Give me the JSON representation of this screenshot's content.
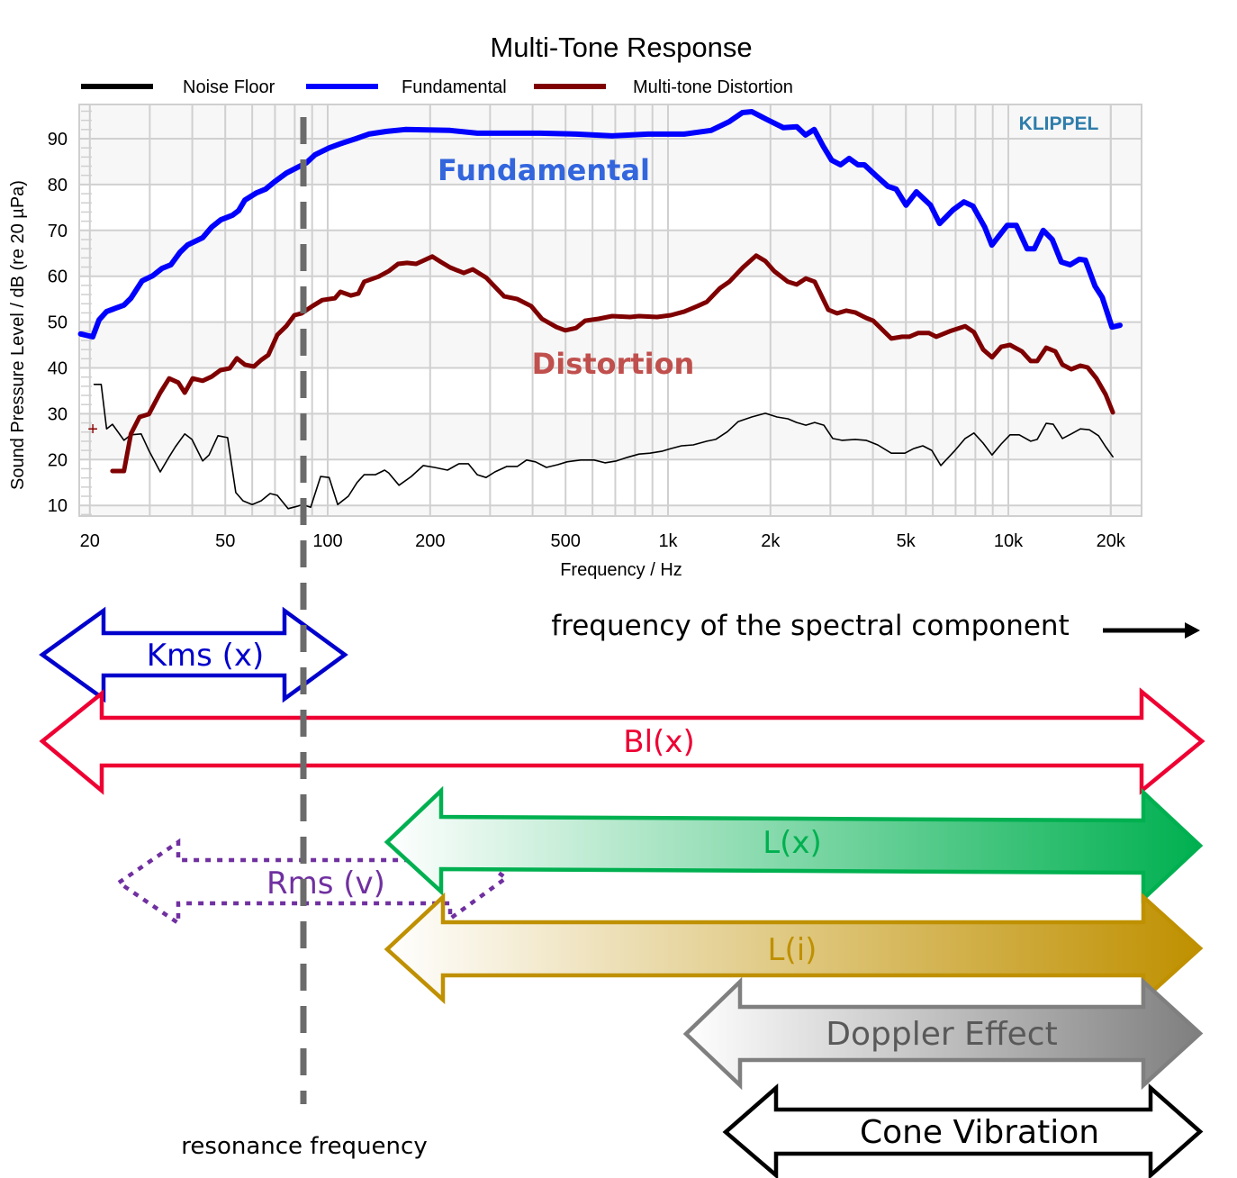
{
  "chart_data": {
    "type": "line",
    "title": "Multi-Tone Response",
    "xlabel": "Frequency / Hz",
    "ylabel": "Sound Pressure Level / dB (re 20 µPa)",
    "xscale": "log",
    "xlim": [
      18.6,
      24600
    ],
    "ylim": [
      7.6,
      97.5
    ],
    "grid": true,
    "legend_placement": "top",
    "x_ticks": [
      20,
      50,
      100,
      200,
      500,
      1000,
      2000,
      5000,
      10000,
      20000
    ],
    "x_tick_labels": [
      "20",
      "50",
      "100",
      "200",
      "500",
      "1k",
      "2k",
      "5k",
      "10k",
      "20k"
    ],
    "y_ticks": [
      10,
      20,
      30,
      40,
      50,
      60,
      70,
      80,
      90
    ],
    "y_tick_labels": [
      "10",
      "20",
      "30",
      "40",
      "50",
      "60",
      "70",
      "80",
      "90"
    ],
    "watermark": "KLIPPEL",
    "annotations": [
      {
        "text": "Fundamental",
        "color": "#3366dd"
      },
      {
        "text": "Distortion",
        "color": "#c0504d"
      }
    ],
    "marker": {
      "label": "+",
      "x": 20.4,
      "y": 26.7,
      "color": "#8b0000"
    },
    "resonance_frequency_hz": 85,
    "series": [
      {
        "name": "Noise Floor",
        "color": "#000000",
        "points": [
          [
            20.6,
            36.4
          ],
          [
            21.6,
            36.4
          ],
          [
            22.4,
            26.7
          ],
          [
            23.3,
            27.7
          ],
          [
            25.2,
            24.2
          ],
          [
            26.4,
            25.4
          ],
          [
            28.3,
            25.6
          ],
          [
            29.8,
            22.0
          ],
          [
            32.2,
            17.3
          ],
          [
            34.2,
            20.6
          ],
          [
            35.7,
            22.8
          ],
          [
            38.0,
            25.6
          ],
          [
            39.9,
            24.4
          ],
          [
            42.9,
            19.7
          ],
          [
            44.8,
            21.0
          ],
          [
            47.6,
            25.2
          ],
          [
            50.8,
            24.8
          ],
          [
            53.7,
            12.8
          ],
          [
            56.4,
            11.0
          ],
          [
            60.0,
            10.2
          ],
          [
            63.7,
            11.0
          ],
          [
            67.7,
            12.6
          ],
          [
            71.1,
            12.2
          ],
          [
            76.5,
            9.3
          ],
          [
            81.3,
            9.8
          ],
          [
            84.3,
            10.2
          ],
          [
            89.1,
            9.6
          ],
          [
            95.3,
            16.3
          ],
          [
            101,
            16.1
          ],
          [
            107,
            10.2
          ],
          [
            115,
            12.0
          ],
          [
            122,
            15.0
          ],
          [
            128,
            16.7
          ],
          [
            138,
            16.7
          ],
          [
            147,
            17.7
          ],
          [
            151,
            17.1
          ],
          [
            162,
            14.4
          ],
          [
            176,
            16.3
          ],
          [
            191,
            18.7
          ],
          [
            206,
            18.3
          ],
          [
            225,
            17.7
          ],
          [
            243,
            19.1
          ],
          [
            259,
            19.1
          ],
          [
            275,
            16.7
          ],
          [
            292,
            16.1
          ],
          [
            310,
            17.3
          ],
          [
            336,
            18.5
          ],
          [
            361,
            18.5
          ],
          [
            384,
            19.9
          ],
          [
            408,
            19.5
          ],
          [
            439,
            18.3
          ],
          [
            475,
            18.9
          ],
          [
            505,
            19.5
          ],
          [
            554,
            19.9
          ],
          [
            607,
            19.9
          ],
          [
            653,
            19.3
          ],
          [
            706,
            19.7
          ],
          [
            760,
            20.5
          ],
          [
            822,
            21.2
          ],
          [
            885,
            21.4
          ],
          [
            958,
            21.8
          ],
          [
            1019,
            22.4
          ],
          [
            1096,
            23.0
          ],
          [
            1186,
            23.2
          ],
          [
            1300,
            24.0
          ],
          [
            1380,
            24.4
          ],
          [
            1495,
            26.1
          ],
          [
            1608,
            28.3
          ],
          [
            1762,
            29.3
          ],
          [
            1932,
            30.1
          ],
          [
            2090,
            29.3
          ],
          [
            2249,
            28.9
          ],
          [
            2388,
            28.1
          ],
          [
            2541,
            27.5
          ],
          [
            2698,
            28.1
          ],
          [
            2871,
            27.5
          ],
          [
            3048,
            24.6
          ],
          [
            3243,
            24.2
          ],
          [
            3548,
            24.4
          ],
          [
            3819,
            24.2
          ],
          [
            4131,
            23.2
          ],
          [
            4529,
            21.4
          ],
          [
            4966,
            21.4
          ],
          [
            5272,
            22.4
          ],
          [
            5605,
            23.0
          ],
          [
            5957,
            22.0
          ],
          [
            6334,
            18.7
          ],
          [
            6934,
            21.8
          ],
          [
            7464,
            24.6
          ],
          [
            7925,
            25.8
          ],
          [
            8433,
            23.6
          ],
          [
            8954,
            21.0
          ],
          [
            9528,
            23.4
          ],
          [
            10116,
            25.4
          ],
          [
            10765,
            25.4
          ],
          [
            11641,
            24.0
          ],
          [
            12162,
            24.4
          ],
          [
            12912,
            27.9
          ],
          [
            13552,
            27.7
          ],
          [
            14420,
            24.6
          ],
          [
            15311,
            25.6
          ],
          [
            16293,
            26.7
          ],
          [
            17298,
            26.5
          ],
          [
            18408,
            25.2
          ],
          [
            19320,
            22.8
          ],
          [
            20280,
            20.6
          ]
        ]
      },
      {
        "name": "Fundamental",
        "color": "#0000ff",
        "points": [
          [
            18.8,
            47.4
          ],
          [
            20.4,
            46.8
          ],
          [
            21.3,
            50.5
          ],
          [
            22.4,
            52.3
          ],
          [
            25.2,
            53.7
          ],
          [
            26.4,
            55.2
          ],
          [
            28.5,
            59.0
          ],
          [
            30.6,
            60.1
          ],
          [
            32.6,
            61.7
          ],
          [
            34.6,
            62.5
          ],
          [
            36.8,
            65.2
          ],
          [
            38.7,
            66.8
          ],
          [
            42.9,
            68.4
          ],
          [
            45.6,
            70.7
          ],
          [
            48.5,
            72.3
          ],
          [
            52.5,
            73.3
          ],
          [
            54.7,
            74.3
          ],
          [
            57.1,
            76.6
          ],
          [
            61.8,
            78.2
          ],
          [
            65.7,
            79.0
          ],
          [
            69.8,
            80.6
          ],
          [
            75.6,
            82.5
          ],
          [
            81.3,
            83.7
          ],
          [
            86.4,
            84.7
          ],
          [
            91.8,
            86.5
          ],
          [
            101,
            88.0
          ],
          [
            110,
            89.0
          ],
          [
            121,
            90.0
          ],
          [
            132,
            91.0
          ],
          [
            149,
            91.6
          ],
          [
            169,
            92.0
          ],
          [
            229,
            91.8
          ],
          [
            275,
            91.2
          ],
          [
            351,
            91.2
          ],
          [
            421,
            91.2
          ],
          [
            537,
            91.0
          ],
          [
            685,
            90.6
          ],
          [
            874,
            91.0
          ],
          [
            1115,
            91.0
          ],
          [
            1338,
            91.8
          ],
          [
            1511,
            93.7
          ],
          [
            1655,
            95.7
          ],
          [
            1763,
            95.9
          ],
          [
            1939,
            94.3
          ],
          [
            2184,
            92.4
          ],
          [
            2391,
            92.6
          ],
          [
            2536,
            90.8
          ],
          [
            2690,
            92.0
          ],
          [
            2854,
            88.4
          ],
          [
            3027,
            85.3
          ],
          [
            3212,
            84.3
          ],
          [
            3407,
            85.7
          ],
          [
            3615,
            84.3
          ],
          [
            3775,
            84.3
          ],
          [
            4088,
            81.9
          ],
          [
            4427,
            79.6
          ],
          [
            4680,
            79.0
          ],
          [
            5006,
            75.5
          ],
          [
            5370,
            78.4
          ],
          [
            5907,
            75.5
          ],
          [
            6282,
            71.5
          ],
          [
            6890,
            74.5
          ],
          [
            7406,
            76.2
          ],
          [
            7871,
            75.3
          ],
          [
            8523,
            70.7
          ],
          [
            8946,
            66.8
          ],
          [
            9928,
            71.1
          ],
          [
            10556,
            71.1
          ],
          [
            11357,
            66.0
          ],
          [
            11925,
            66.0
          ],
          [
            12670,
            70.0
          ],
          [
            13462,
            68.0
          ],
          [
            14304,
            63.1
          ],
          [
            15198,
            62.5
          ],
          [
            16148,
            63.7
          ],
          [
            16844,
            63.5
          ],
          [
            17995,
            57.8
          ],
          [
            18882,
            55.4
          ],
          [
            20163,
            48.9
          ],
          [
            21283,
            49.3
          ]
        ]
      },
      {
        "name": "Multi-tone Distortion",
        "color": "#7f0000",
        "points": [
          [
            23.3,
            17.5
          ],
          [
            25.2,
            17.5
          ],
          [
            26.4,
            25.6
          ],
          [
            28.0,
            29.3
          ],
          [
            29.8,
            29.9
          ],
          [
            32.2,
            34.6
          ],
          [
            34.2,
            37.7
          ],
          [
            36.4,
            36.8
          ],
          [
            38.0,
            34.6
          ],
          [
            40.1,
            37.7
          ],
          [
            42.9,
            37.2
          ],
          [
            45.6,
            38.1
          ],
          [
            48.4,
            39.5
          ],
          [
            51.5,
            39.9
          ],
          [
            54.1,
            42.1
          ],
          [
            57.1,
            40.7
          ],
          [
            60.7,
            40.3
          ],
          [
            63.7,
            41.7
          ],
          [
            66.9,
            42.8
          ],
          [
            71.1,
            47.2
          ],
          [
            75.5,
            49.1
          ],
          [
            79.8,
            51.5
          ],
          [
            83.8,
            51.9
          ],
          [
            90.2,
            53.5
          ],
          [
            96.4,
            54.8
          ],
          [
            105,
            55.2
          ],
          [
            109,
            56.6
          ],
          [
            117,
            55.8
          ],
          [
            123,
            56.2
          ],
          [
            128,
            58.8
          ],
          [
            141,
            59.9
          ],
          [
            151,
            61.1
          ],
          [
            161,
            62.7
          ],
          [
            171,
            62.9
          ],
          [
            182,
            62.7
          ],
          [
            203,
            64.3
          ],
          [
            215,
            63.1
          ],
          [
            229,
            61.9
          ],
          [
            251,
            60.7
          ],
          [
            267,
            61.5
          ],
          [
            292,
            59.7
          ],
          [
            330,
            55.6
          ],
          [
            361,
            55.0
          ],
          [
            396,
            53.5
          ],
          [
            426,
            50.7
          ],
          [
            470,
            48.9
          ],
          [
            499,
            48.2
          ],
          [
            537,
            48.7
          ],
          [
            571,
            50.3
          ],
          [
            625,
            50.7
          ],
          [
            685,
            51.3
          ],
          [
            774,
            51.1
          ],
          [
            822,
            51.3
          ],
          [
            929,
            51.1
          ],
          [
            1019,
            51.5
          ],
          [
            1117,
            52.3
          ],
          [
            1222,
            53.5
          ],
          [
            1300,
            54.4
          ],
          [
            1422,
            57.4
          ],
          [
            1514,
            58.8
          ],
          [
            1660,
            61.9
          ],
          [
            1816,
            64.5
          ],
          [
            1932,
            63.3
          ],
          [
            2052,
            61.1
          ],
          [
            2249,
            58.8
          ],
          [
            2388,
            58.2
          ],
          [
            2541,
            59.5
          ],
          [
            2698,
            58.8
          ],
          [
            2958,
            52.7
          ],
          [
            3141,
            51.9
          ],
          [
            3342,
            52.5
          ],
          [
            3548,
            52.1
          ],
          [
            3819,
            50.9
          ],
          [
            4009,
            50.3
          ],
          [
            4529,
            46.4
          ],
          [
            4875,
            46.8
          ],
          [
            5117,
            46.8
          ],
          [
            5433,
            47.6
          ],
          [
            5848,
            47.6
          ],
          [
            6138,
            46.8
          ],
          [
            6730,
            48.0
          ],
          [
            7464,
            49.1
          ],
          [
            7925,
            47.8
          ],
          [
            8433,
            44.0
          ],
          [
            8954,
            42.3
          ],
          [
            9528,
            44.6
          ],
          [
            10116,
            45.0
          ],
          [
            10965,
            43.6
          ],
          [
            11641,
            41.5
          ],
          [
            12162,
            41.5
          ],
          [
            12912,
            44.4
          ],
          [
            13740,
            43.6
          ],
          [
            14420,
            40.7
          ],
          [
            15311,
            39.7
          ],
          [
            16293,
            40.5
          ],
          [
            17100,
            40.1
          ],
          [
            18155,
            37.7
          ],
          [
            19320,
            34.2
          ],
          [
            20280,
            30.3
          ]
        ]
      }
    ]
  },
  "diagram": {
    "top_caption": "frequency of the spectral component",
    "resonance_caption": "resonance frequency",
    "arrows": [
      {
        "label": "Kms (x)",
        "color": "#0000cc",
        "style": "outline"
      },
      {
        "label": "Bl(x)",
        "color": "#ee0033",
        "style": "outline"
      },
      {
        "label": "L(x)",
        "color": "#00b050",
        "style": "gradient"
      },
      {
        "label": "Rms (v)",
        "color": "#7030a0",
        "style": "dotted"
      },
      {
        "label": "L(i)",
        "color": "#bf9000",
        "style": "gradient"
      },
      {
        "label": "Doppler Effect",
        "color": "#7f7f7f",
        "text_color": "#595959",
        "style": "gradient"
      },
      {
        "label": "Cone Vibration",
        "color": "#000000",
        "style": "outline"
      }
    ]
  }
}
